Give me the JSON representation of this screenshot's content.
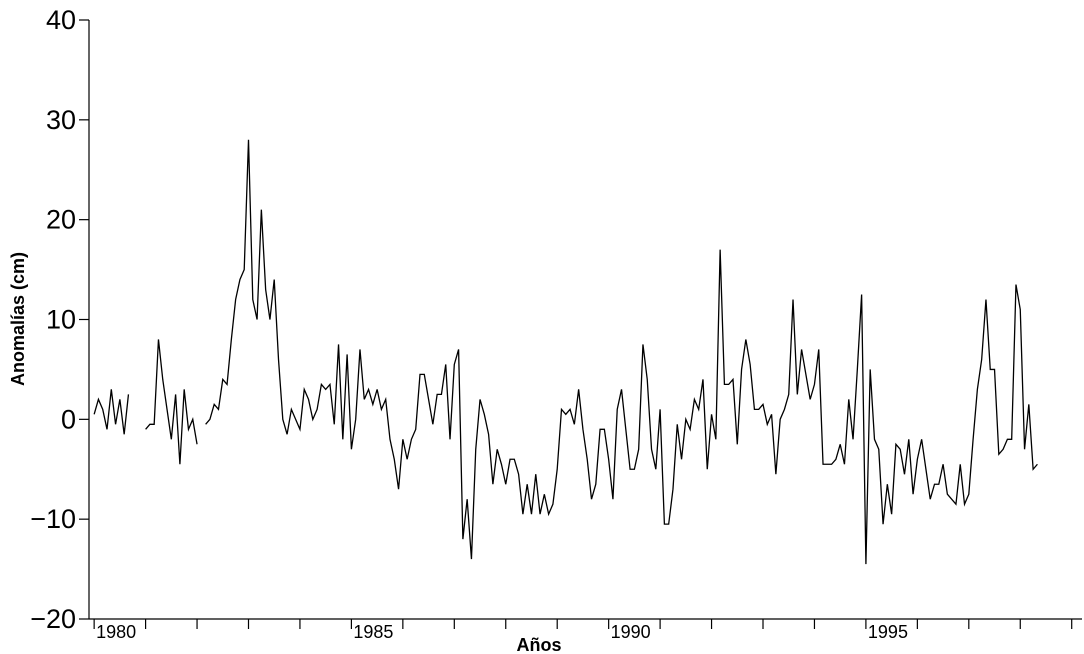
{
  "chart_data": {
    "type": "line",
    "title": "",
    "xlabel": "Años",
    "ylabel": "Anomalías (cm)",
    "xlim": [
      1979.9,
      1999.2
    ],
    "ylim": [
      -20,
      40
    ],
    "yticks": [
      -20,
      -10,
      0,
      10,
      20,
      30,
      40
    ],
    "ytick_labels": [
      "−20",
      "−10",
      "0",
      "10",
      "20",
      "30",
      "40"
    ],
    "xtick_labels": [
      {
        "year": 1980,
        "label": "1980"
      },
      {
        "year": 1985,
        "label": "1985"
      },
      {
        "year": 1990,
        "label": "1990"
      },
      {
        "year": 1995,
        "label": "1995"
      }
    ],
    "grid": false,
    "legend": "none",
    "series": [
      {
        "color": "#000000",
        "start": 1980.0,
        "step_months": 1,
        "values": [
          0.5,
          2,
          1,
          -1,
          3,
          -0.5,
          2,
          -1.5,
          2.5,
          null,
          null,
          null,
          -1,
          -0.5,
          -0.5,
          8,
          4,
          1,
          -2,
          2.5,
          -4.5,
          3,
          -1,
          0,
          -2.5,
          null,
          -0.5,
          0,
          1.5,
          1,
          4,
          3.5,
          8,
          12,
          14,
          15,
          28,
          12,
          10,
          21,
          13,
          10,
          14,
          6,
          0,
          -1.5,
          1,
          0,
          -1,
          3,
          2,
          0,
          1,
          3.5,
          3,
          3.5,
          -0.5,
          7.5,
          -2,
          6.5,
          -3,
          0,
          7,
          2,
          3,
          1.5,
          3,
          1,
          2,
          -2,
          -4,
          -7,
          -2,
          -4,
          -2,
          -1,
          4.5,
          4.5,
          2,
          -0.5,
          2.5,
          2.5,
          5.5,
          -2,
          5.5,
          7,
          -12,
          -8,
          -14,
          -3,
          2,
          0.5,
          -1.5,
          -6.5,
          -3,
          -4.5,
          -6.5,
          -4,
          -4,
          -5.5,
          -9.5,
          -6.5,
          -9.5,
          -5.5,
          -9.5,
          -7.5,
          -9.5,
          -8.5,
          -5,
          1,
          0.5,
          1,
          -0.5,
          3,
          -1,
          -4,
          -8,
          -6.5,
          -1,
          -1,
          -4,
          -8,
          1,
          3,
          -1,
          -5,
          -5,
          -3,
          7.5,
          4,
          -3,
          -5,
          1,
          -10.5,
          -10.5,
          -7,
          -0.5,
          -4,
          0,
          -1,
          2,
          1,
          4,
          -5,
          0.5,
          -2,
          17,
          3.5,
          3.5,
          4,
          -2.5,
          5,
          8,
          5.5,
          1,
          1,
          1.5,
          -0.5,
          0.5,
          -5.5,
          0,
          1,
          2.5,
          12,
          2.5,
          7,
          4.5,
          2,
          3.5,
          7,
          -4.5,
          -4.5,
          -4.5,
          -4,
          -2.5,
          -4.5,
          2,
          -2,
          5,
          12.5,
          -14.5,
          5,
          -2,
          -3,
          -10.5,
          -6.5,
          -9.5,
          -2.5,
          -3,
          -5.5,
          -2,
          -7.5,
          -4,
          -2,
          -5,
          -8,
          -6.5,
          -6.5,
          -4.5,
          -7.5,
          -8,
          -8.5,
          -4.5,
          -8.5,
          -7.5,
          -2,
          3,
          6,
          12,
          5,
          5,
          -3.5,
          -3,
          -2,
          -2,
          13.5,
          11,
          -3,
          1.5,
          -5,
          -4.5
        ]
      }
    ]
  }
}
